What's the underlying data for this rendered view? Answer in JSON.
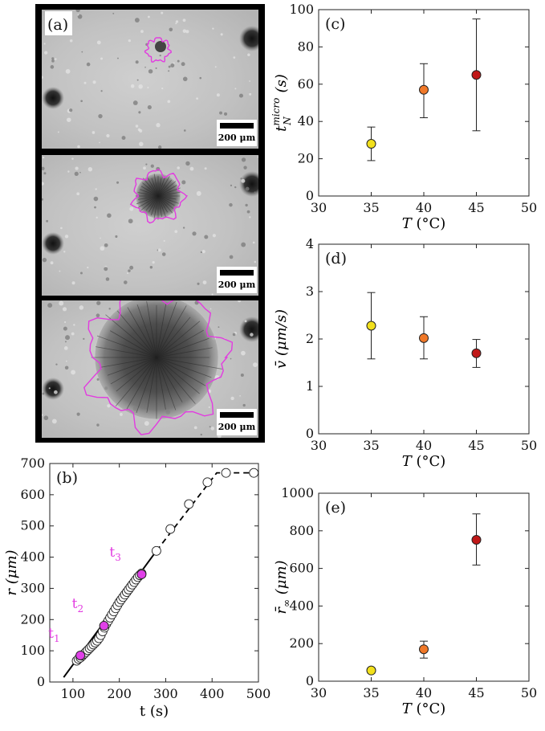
{
  "figure": {
    "panels": {
      "a": "(a)",
      "b": "(b)",
      "c": "(c)",
      "d": "(d)",
      "e": "(e)"
    },
    "scale_bar_text": "200 μm",
    "micrographs": [
      {
        "time": "t1",
        "pattern_radius_um": 85
      },
      {
        "time": "t2",
        "pattern_radius_um": 180
      },
      {
        "time": "t3",
        "pattern_radius_um": 345
      }
    ],
    "colors": {
      "outline": "#e23be0",
      "marker_highlight": "#e040e8",
      "time_label": "#e23be0",
      "T35": "#f2e01c",
      "T40": "#f07828",
      "T45": "#c01818"
    }
  },
  "chart_data": [
    {
      "id": "b",
      "type": "scatter",
      "xlabel": "t (s)",
      "ylabel": "r (μm)",
      "xlim": [
        50,
        500
      ],
      "ylim": [
        0,
        700
      ],
      "xticks": [
        100,
        200,
        300,
        400,
        500
      ],
      "yticks": [
        0,
        100,
        200,
        300,
        400,
        500,
        600,
        700
      ],
      "points": [
        {
          "x": 108,
          "y": 68
        },
        {
          "x": 112,
          "y": 74
        },
        {
          "x": 116,
          "y": 78
        },
        {
          "x": 120,
          "y": 84
        },
        {
          "x": 124,
          "y": 90
        },
        {
          "x": 128,
          "y": 96
        },
        {
          "x": 132,
          "y": 102
        },
        {
          "x": 136,
          "y": 108
        },
        {
          "x": 140,
          "y": 114
        },
        {
          "x": 144,
          "y": 120
        },
        {
          "x": 148,
          "y": 126
        },
        {
          "x": 152,
          "y": 132
        },
        {
          "x": 156,
          "y": 140
        },
        {
          "x": 160,
          "y": 150
        },
        {
          "x": 164,
          "y": 162
        },
        {
          "x": 168,
          "y": 174
        },
        {
          "x": 172,
          "y": 186
        },
        {
          "x": 176,
          "y": 196
        },
        {
          "x": 180,
          "y": 206
        },
        {
          "x": 184,
          "y": 216
        },
        {
          "x": 188,
          "y": 226
        },
        {
          "x": 192,
          "y": 236
        },
        {
          "x": 196,
          "y": 246
        },
        {
          "x": 200,
          "y": 256
        },
        {
          "x": 204,
          "y": 264
        },
        {
          "x": 208,
          "y": 272
        },
        {
          "x": 212,
          "y": 280
        },
        {
          "x": 216,
          "y": 288
        },
        {
          "x": 220,
          "y": 296
        },
        {
          "x": 224,
          "y": 304
        },
        {
          "x": 228,
          "y": 312
        },
        {
          "x": 232,
          "y": 320
        },
        {
          "x": 236,
          "y": 328
        },
        {
          "x": 240,
          "y": 336
        },
        {
          "x": 244,
          "y": 342
        },
        {
          "x": 248,
          "y": 348
        },
        {
          "x": 280,
          "y": 420
        },
        {
          "x": 310,
          "y": 490
        },
        {
          "x": 350,
          "y": 570
        },
        {
          "x": 390,
          "y": 640
        },
        {
          "x": 430,
          "y": 670
        },
        {
          "x": 490,
          "y": 670
        }
      ],
      "highlighted": [
        {
          "x": 116,
          "y": 85,
          "label": "t",
          "sub": "1"
        },
        {
          "x": 167,
          "y": 180,
          "label": "t",
          "sub": "2"
        },
        {
          "x": 248,
          "y": 345,
          "label": "t",
          "sub": "3"
        }
      ],
      "fit_solid": [
        [
          80,
          15
        ],
        [
          280,
          420
        ]
      ],
      "fit_dashed": [
        [
          280,
          420
        ],
        [
          410,
          670
        ],
        [
          495,
          670
        ]
      ]
    },
    {
      "id": "c",
      "type": "scatter",
      "xlabel_main": "T",
      "xlabel_unit": "(°C)",
      "ylabel_main": "t",
      "ylabel_sup": "micro",
      "ylabel_sub": "N",
      "ylabel_unit": "(s)",
      "xlim": [
        30,
        50
      ],
      "ylim": [
        0,
        100
      ],
      "xticks": [
        30,
        35,
        40,
        45,
        50
      ],
      "yticks": [
        0,
        20,
        40,
        60,
        80,
        100
      ],
      "points": [
        {
          "x": 35,
          "y": 28,
          "err_low": 19,
          "err_high": 37,
          "color": "#f2e01c"
        },
        {
          "x": 40,
          "y": 57,
          "err_low": 42,
          "err_high": 71,
          "color": "#f07828"
        },
        {
          "x": 45,
          "y": 65,
          "err_low": 35,
          "err_high": 95,
          "color": "#c01818"
        }
      ]
    },
    {
      "id": "d",
      "type": "scatter",
      "xlabel_main": "T",
      "xlabel_unit": "(°C)",
      "ylabel_main": "v̄",
      "ylabel_unit": "(μm/s)",
      "xlim": [
        30,
        50
      ],
      "ylim": [
        0,
        4
      ],
      "xticks": [
        30,
        35,
        40,
        45,
        50
      ],
      "yticks": [
        0,
        1,
        2,
        3,
        4
      ],
      "points": [
        {
          "x": 35,
          "y": 2.28,
          "err_low": 1.58,
          "err_high": 2.98,
          "color": "#f2e01c"
        },
        {
          "x": 40,
          "y": 2.02,
          "err_low": 1.58,
          "err_high": 2.47,
          "color": "#f07828"
        },
        {
          "x": 45,
          "y": 1.7,
          "err_low": 1.4,
          "err_high": 1.99,
          "color": "#c01818"
        }
      ]
    },
    {
      "id": "e",
      "type": "scatter",
      "xlabel_main": "T",
      "xlabel_unit": "(°C)",
      "ylabel_main": "r̄",
      "ylabel_sub": "∞",
      "ylabel_unit": "(μm)",
      "xlim": [
        30,
        50
      ],
      "ylim": [
        0,
        1000
      ],
      "xticks": [
        30,
        35,
        40,
        45,
        50
      ],
      "yticks": [
        0,
        200,
        400,
        600,
        800,
        1000
      ],
      "points": [
        {
          "x": 35,
          "y": 57,
          "err_low": 43,
          "err_high": 70,
          "color": "#f2e01c"
        },
        {
          "x": 40,
          "y": 170,
          "err_low": 123,
          "err_high": 213,
          "color": "#f07828"
        },
        {
          "x": 45,
          "y": 752,
          "err_low": 618,
          "err_high": 890,
          "color": "#c01818"
        }
      ]
    }
  ]
}
